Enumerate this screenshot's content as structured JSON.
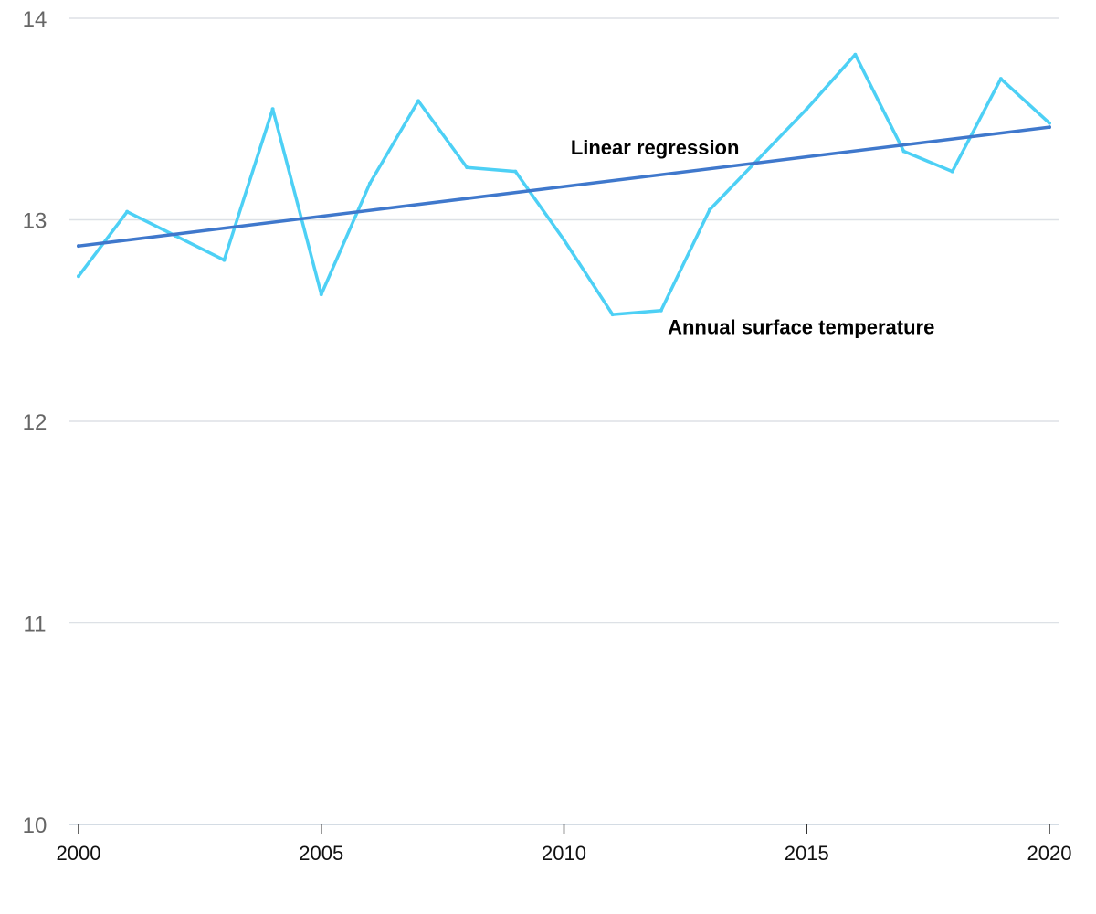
{
  "chart_data": {
    "type": "line",
    "title": "",
    "xlabel": "",
    "ylabel": "",
    "xlim": [
      2000,
      2020
    ],
    "ylim": [
      10,
      14
    ],
    "x_ticks": [
      2000,
      2005,
      2010,
      2015,
      2020
    ],
    "y_ticks": [
      10,
      11,
      12,
      13,
      14
    ],
    "grid": "horizontal",
    "series": [
      {
        "name": "Annual surface temperature",
        "color": "#4dd0f5",
        "x": [
          2000,
          2001,
          2002,
          2003,
          2004,
          2005,
          2006,
          2007,
          2008,
          2009,
          2010,
          2011,
          2012,
          2013,
          2014,
          2015,
          2016,
          2017,
          2018,
          2019,
          2020
        ],
        "values": [
          12.72,
          13.04,
          12.92,
          12.8,
          13.55,
          12.63,
          13.18,
          13.59,
          13.26,
          13.24,
          12.9,
          12.53,
          12.55,
          13.05,
          13.3,
          13.55,
          13.82,
          13.34,
          13.24,
          13.7,
          13.48
        ]
      },
      {
        "name": "Linear regression",
        "color": "#3f78cc",
        "x": [
          2000,
          2020
        ],
        "values": [
          12.87,
          13.46
        ]
      }
    ],
    "annotations": [
      {
        "text": "Linear regression",
        "series": 1,
        "near_x": 2010.1,
        "near_y": 13.36
      },
      {
        "text": "Annual surface temperature",
        "series": 0,
        "near_x": 2012.1,
        "near_y": 12.47
      }
    ]
  }
}
